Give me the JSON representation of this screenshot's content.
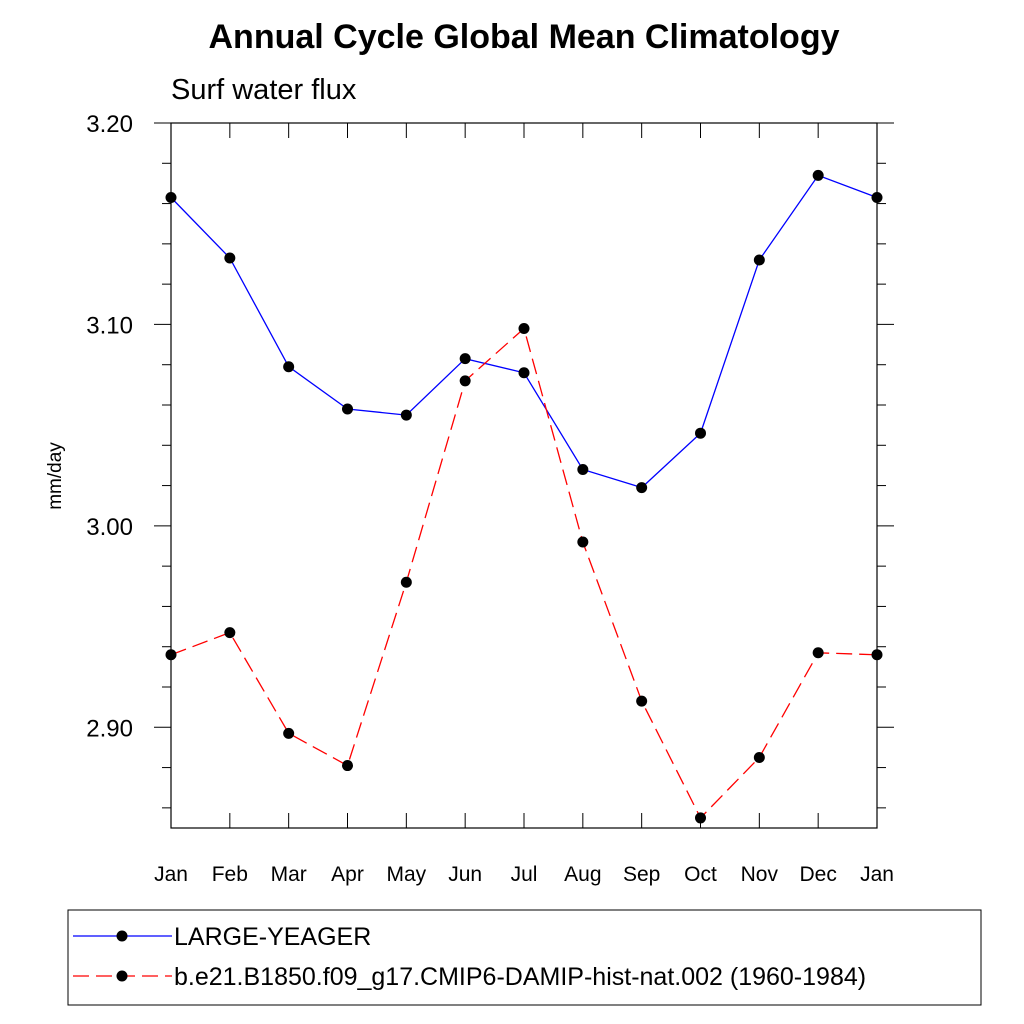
{
  "chart_data": {
    "type": "line",
    "title": "Annual Cycle Global Mean Climatology",
    "subtitle": "Surf water flux",
    "ylabel": "mm/day",
    "xlabel": "",
    "categories": [
      "Jan",
      "Feb",
      "Mar",
      "Apr",
      "May",
      "Jun",
      "Jul",
      "Aug",
      "Sep",
      "Oct",
      "Nov",
      "Dec",
      "Jan"
    ],
    "ylim": [
      2.85,
      3.2
    ],
    "yticks": [
      2.9,
      3.0,
      3.1,
      3.2
    ],
    "ytick_labels": [
      "2.90",
      "3.00",
      "3.10",
      "3.20"
    ],
    "grid": false,
    "legend_position": "bottom",
    "series": [
      {
        "name": "LARGE-YEAGER",
        "color": "#0000ff",
        "line_style": "solid",
        "marker": "filled-circle",
        "values": [
          3.163,
          3.133,
          3.079,
          3.058,
          3.055,
          3.083,
          3.076,
          3.028,
          3.019,
          3.046,
          3.132,
          3.174,
          3.163
        ]
      },
      {
        "name": "b.e21.B1850.f09_g17.CMIP6-DAMIP-hist-nat.002 (1960-1984)",
        "color": "#ff0000",
        "line_style": "dashed",
        "marker": "filled-circle",
        "values": [
          2.936,
          2.947,
          2.897,
          2.881,
          2.972,
          3.072,
          3.098,
          2.992,
          2.913,
          2.855,
          2.885,
          2.937,
          2.936
        ]
      }
    ]
  }
}
